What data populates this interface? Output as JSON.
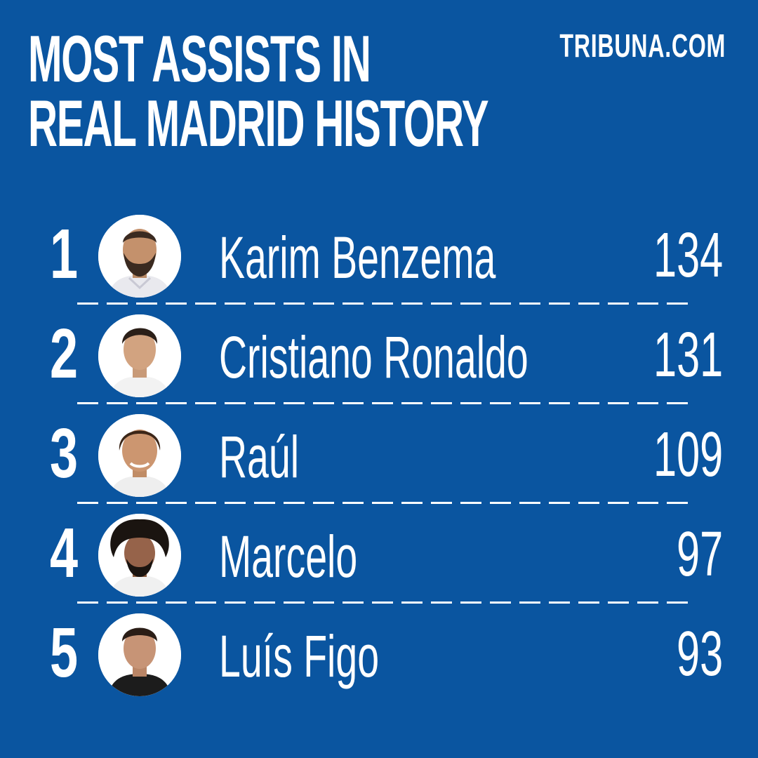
{
  "header": {
    "title_line1": "MOST ASSISTS IN",
    "title_line2": "REAL MADRID HISTORY",
    "brand": "TRIBUNA.COM"
  },
  "colors": {
    "background": "#0a55a0",
    "text": "#ffffff"
  },
  "ranking": [
    {
      "rank": "1",
      "name": "Karim Benzema",
      "assists": "134",
      "photo_icon": "player-portrait-icon"
    },
    {
      "rank": "2",
      "name": "Cristiano Ronaldo",
      "assists": "131",
      "photo_icon": "player-portrait-icon"
    },
    {
      "rank": "3",
      "name": "Raúl",
      "assists": "109",
      "photo_icon": "player-portrait-icon"
    },
    {
      "rank": "4",
      "name": "Marcelo",
      "assists": "97",
      "photo_icon": "player-portrait-icon"
    },
    {
      "rank": "5",
      "name": "Luís Figo",
      "assists": "93",
      "photo_icon": "player-portrait-icon"
    }
  ]
}
